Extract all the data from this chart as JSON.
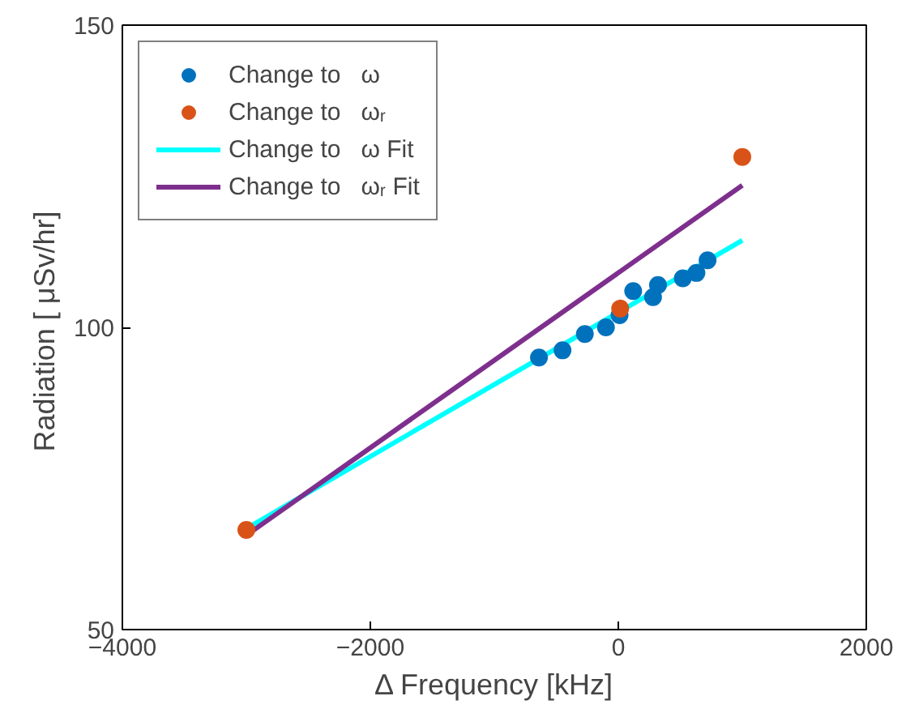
{
  "chart_data": {
    "type": "scatter",
    "xlabel": "Δ Frequency [kHz]",
    "ylabel": "Radiation [  μSv/hr]",
    "xlim": [
      -4000,
      2000
    ],
    "ylim": [
      50,
      150
    ],
    "xticks": [
      -4000,
      -2000,
      0,
      2000
    ],
    "yticks": [
      50,
      100,
      150
    ],
    "grid": false,
    "legend": "top left",
    "series": [
      {
        "name": "Change to   ω",
        "marker": "circle",
        "color": "#0072bd",
        "x": [
          -640,
          -450,
          -270,
          -100,
          10,
          120,
          280,
          320,
          520,
          630,
          720
        ],
        "values": [
          95.0,
          96.2,
          98.9,
          100.0,
          102.0,
          106.0,
          105.0,
          107.0,
          108.1,
          109.0,
          111.1
        ]
      },
      {
        "name": "Change to   ωᵣ",
        "marker": "circle",
        "color": "#d95319",
        "x": [
          -3000,
          15,
          1000
        ],
        "values": [
          66.5,
          103.1,
          128.2
        ]
      },
      {
        "name": "Change to   ω Fit",
        "type": "line",
        "color": "#00ffff",
        "x": [
          -3000,
          1000
        ],
        "values": [
          66.7,
          114.4
        ]
      },
      {
        "name": "Change to   ωᵣ Fit",
        "type": "line",
        "color": "#7e2f8e",
        "x": [
          -3000,
          1000
        ],
        "values": [
          65.6,
          123.5
        ]
      }
    ]
  }
}
